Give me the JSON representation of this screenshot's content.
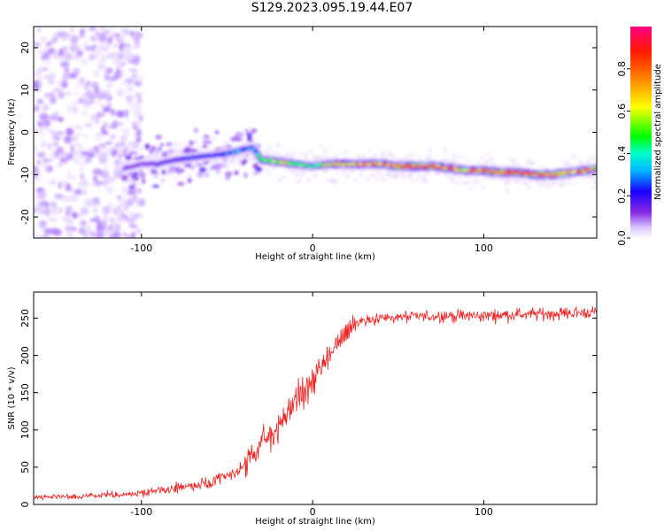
{
  "figure_title": "S129.2023.095.19.44.E07",
  "chart_data": [
    {
      "type": "heatmap",
      "title": "",
      "xlabel": "Height of straight line (km)",
      "ylabel": "Frequency (Hz)",
      "xlim": [
        -163,
        166
      ],
      "ylim": [
        -25,
        25
      ],
      "xticks": [
        -100,
        0,
        100
      ],
      "yticks": [
        -20,
        -10,
        0,
        10,
        20
      ],
      "colorbar": {
        "label": "Normalized spectral amplitude",
        "range": [
          0,
          1
        ],
        "ticks": [
          0.0,
          0.2,
          0.4,
          0.6,
          0.8
        ],
        "tick_labels": [
          "0.0",
          "0.2",
          "0.4",
          "0.6",
          "0.8"
        ],
        "colormap": [
          "#ffffff",
          "#e8d8ff",
          "#b488ff",
          "#8a2be2",
          "#0000ff",
          "#00ffff",
          "#00ff00",
          "#ffff00",
          "#ff8800",
          "#ff0000",
          "#ff0090"
        ]
      },
      "ridge": {
        "x": [
          -110,
          -100,
          -90,
          -80,
          -70,
          -60,
          -50,
          -40,
          -35,
          -30,
          -20,
          -10,
          0,
          10,
          20,
          30,
          40,
          50,
          60,
          70,
          80,
          90,
          100,
          110,
          120,
          130,
          140,
          150,
          160,
          166
        ],
        "freq": [
          -8.5,
          -7.5,
          -7.5,
          -6.5,
          -6,
          -5.5,
          -5,
          -4,
          -3.5,
          -6.5,
          -7,
          -7.5,
          -8,
          -7.5,
          -7.5,
          -7.5,
          -7.5,
          -8,
          -8,
          -8,
          -8.5,
          -9,
          -9,
          -9.5,
          -9.5,
          -10,
          -10,
          -9.5,
          -9,
          -8.5
        ],
        "amplitude": [
          0.3,
          0.3,
          0.35,
          0.35,
          0.4,
          0.4,
          0.45,
          0.45,
          0.4,
          0.65,
          0.7,
          0.6,
          0.55,
          0.7,
          0.75,
          0.75,
          0.8,
          0.85,
          0.9,
          0.85,
          0.8,
          0.75,
          0.85,
          0.85,
          0.85,
          0.9,
          0.85,
          0.8,
          0.85,
          0.7
        ]
      },
      "noise_region": {
        "x_max": -100,
        "amplitude": 0.15
      }
    },
    {
      "type": "line",
      "title": "",
      "xlabel": "Height of straight line (km)",
      "ylabel": "SNR (10 * v/v)",
      "xlim": [
        -163,
        166
      ],
      "ylim": [
        0,
        285
      ],
      "xticks": [
        -100,
        0,
        100
      ],
      "yticks": [
        0,
        50,
        100,
        150,
        200,
        250
      ],
      "series": [
        {
          "color": "#ee2222",
          "x": [
            -163,
            -140,
            -120,
            -100,
            -80,
            -60,
            -50,
            -40,
            -30,
            -20,
            -10,
            0,
            10,
            15,
            20,
            25,
            30,
            40,
            60,
            80,
            100,
            120,
            140,
            166
          ],
          "values": [
            10,
            10,
            12,
            15,
            22,
            28,
            38,
            50,
            80,
            105,
            140,
            165,
            200,
            215,
            235,
            243,
            248,
            250,
            252,
            253,
            253,
            255,
            256,
            258
          ]
        }
      ]
    }
  ]
}
